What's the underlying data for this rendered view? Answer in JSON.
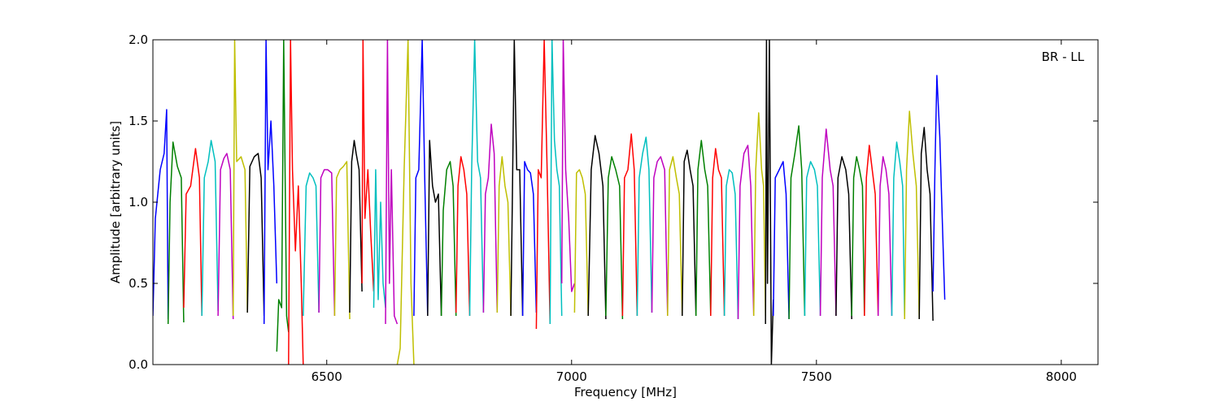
{
  "chart_data": {
    "type": "line",
    "annotation": "BR - LL",
    "xlabel": "Frequency [MHz]",
    "ylabel": "Amplitude [arbitrary units]",
    "xlim": [
      6145,
      8075
    ],
    "ylim": [
      0.0,
      2.0
    ],
    "x_ticks": [
      6500,
      7000,
      7500,
      8000
    ],
    "x_tick_labels": [
      "6500",
      "7000",
      "7500",
      "8000"
    ],
    "y_ticks": [
      0.0,
      0.5,
      1.0,
      1.5,
      2.0
    ],
    "y_tick_labels": [
      "0.0",
      "0.5",
      "1.0",
      "1.5",
      "2.0"
    ],
    "grid": false,
    "channel_width_mhz": 50,
    "background_series_color": "#c0c0c0",
    "series_colors": [
      "#0000ff",
      "#008000",
      "#ff0000",
      "#00bfbf",
      "#bf00bf",
      "#bfbf00",
      "#000000"
    ],
    "series": [
      {
        "color": "#0000ff",
        "x": [
          6145,
          6150,
          6160,
          6168,
          6173,
          6176
        ],
        "y": [
          0.3,
          0.9,
          1.2,
          1.3,
          1.57,
          0.28
        ]
      },
      {
        "color": "#008000",
        "x": [
          6176,
          6180,
          6186,
          6195,
          6203,
          6208
        ],
        "y": [
          0.25,
          1.0,
          1.37,
          1.22,
          1.15,
          0.26
        ]
      },
      {
        "color": "#ff0000",
        "x": [
          6208,
          6213,
          6222,
          6232,
          6240,
          6245
        ],
        "y": [
          0.35,
          1.05,
          1.1,
          1.33,
          1.15,
          0.3
        ]
      },
      {
        "color": "#00bfbf",
        "x": [
          6245,
          6250,
          6258,
          6264,
          6272,
          6278
        ],
        "y": [
          0.3,
          1.15,
          1.25,
          1.38,
          1.25,
          0.33
        ]
      },
      {
        "color": "#bf00bf",
        "x": [
          6278,
          6283,
          6290,
          6296,
          6303,
          6309
        ],
        "y": [
          0.3,
          1.2,
          1.27,
          1.3,
          1.2,
          0.28
        ]
      },
      {
        "color": "#bfbf00",
        "x": [
          6309,
          6312,
          6316,
          6325,
          6333,
          6338
        ],
        "y": [
          0.3,
          2.0,
          1.25,
          1.28,
          1.2,
          0.32
        ]
      },
      {
        "color": "#000000",
        "x": [
          6338,
          6343,
          6352,
          6360,
          6366,
          6372
        ],
        "y": [
          0.32,
          1.22,
          1.28,
          1.3,
          1.15,
          0.3
        ]
      },
      {
        "color": "#0000ff",
        "x": [
          6372,
          6376,
          6380,
          6386,
          6392,
          6398
        ],
        "y": [
          0.25,
          2.0,
          1.2,
          1.5,
          1.1,
          0.5
        ]
      },
      {
        "color": "#008000",
        "x": [
          6398,
          6402,
          6408,
          6412,
          6418,
          6422
        ],
        "y": [
          0.08,
          0.4,
          0.35,
          2.0,
          0.3,
          0.2
        ]
      },
      {
        "color": "#ff0000",
        "x": [
          6422,
          6426,
          6430,
          6436,
          6442,
          6448,
          6452
        ],
        "y": [
          0.0,
          2.0,
          1.2,
          0.7,
          1.1,
          0.5,
          0.0
        ]
      },
      {
        "color": "#00bfbf",
        "x": [
          6452,
          6458,
          6465,
          6472,
          6478,
          6484
        ],
        "y": [
          0.3,
          1.1,
          1.18,
          1.15,
          1.1,
          0.32
        ]
      },
      {
        "color": "#bf00bf",
        "x": [
          6484,
          6488,
          6495,
          6502,
          6510,
          6516
        ],
        "y": [
          0.32,
          1.15,
          1.2,
          1.2,
          1.18,
          0.3
        ]
      },
      {
        "color": "#bfbf00",
        "x": [
          6516,
          6520,
          6527,
          6534,
          6541,
          6547
        ],
        "y": [
          0.3,
          1.15,
          1.2,
          1.22,
          1.25,
          0.28
        ]
      },
      {
        "color": "#000000",
        "x": [
          6547,
          6551,
          6556,
          6560,
          6566,
          6572
        ],
        "y": [
          0.32,
          1.25,
          1.38,
          1.3,
          1.2,
          0.45
        ]
      },
      {
        "color": "#ff0000",
        "x": [
          6572,
          6574,
          6578,
          6584,
          6590,
          6596
        ],
        "y": [
          0.5,
          2.0,
          0.9,
          1.2,
          0.8,
          0.45
        ]
      },
      {
        "color": "#00bfbf",
        "x": [
          6596,
          6600,
          6605,
          6610,
          6615,
          6620
        ],
        "y": [
          0.35,
          1.2,
          0.4,
          1.0,
          0.5,
          0.35
        ]
      },
      {
        "color": "#bf00bf",
        "x": [
          6620,
          6624,
          6628,
          6632,
          6638,
          6644
        ],
        "y": [
          0.25,
          2.0,
          0.5,
          1.2,
          0.3,
          0.25
        ]
      },
      {
        "color": "#bfbf00",
        "x": [
          6644,
          6650,
          6658,
          6666,
          6672,
          6678
        ],
        "y": [
          0.0,
          0.1,
          1.2,
          2.0,
          0.5,
          0.0
        ]
      },
      {
        "color": "#0000ff",
        "x": [
          6678,
          6682,
          6688,
          6695,
          6700,
          6706
        ],
        "y": [
          0.3,
          1.15,
          1.2,
          2.0,
          1.15,
          0.3
        ]
      },
      {
        "color": "#000000",
        "x": [
          6706,
          6710,
          6716,
          6722,
          6728,
          6734
        ],
        "y": [
          0.3,
          1.38,
          1.1,
          1.0,
          1.05,
          0.3
        ]
      },
      {
        "color": "#008000",
        "x": [
          6734,
          6738,
          6745,
          6752,
          6758,
          6764
        ],
        "y": [
          0.3,
          0.95,
          1.2,
          1.25,
          1.1,
          0.3
        ]
      },
      {
        "color": "#ff0000",
        "x": [
          6764,
          6768,
          6774,
          6780,
          6786,
          6792
        ],
        "y": [
          0.32,
          1.1,
          1.28,
          1.2,
          1.05,
          0.3
        ]
      },
      {
        "color": "#00bfbf",
        "x": [
          6792,
          6796,
          6802,
          6808,
          6814,
          6820
        ],
        "y": [
          0.3,
          1.2,
          2.0,
          1.25,
          1.15,
          0.32
        ]
      },
      {
        "color": "#bf00bf",
        "x": [
          6820,
          6824,
          6830,
          6836,
          6842,
          6848
        ],
        "y": [
          0.32,
          1.05,
          1.15,
          1.48,
          1.3,
          0.32
        ]
      },
      {
        "color": "#bfbf00",
        "x": [
          6848,
          6852,
          6858,
          6864,
          6870,
          6876
        ],
        "y": [
          0.32,
          1.1,
          1.28,
          1.1,
          1.0,
          0.3
        ]
      },
      {
        "color": "#000000",
        "x": [
          6876,
          6879,
          6883,
          6888,
          6894,
          6900
        ],
        "y": [
          0.3,
          1.0,
          2.0,
          1.2,
          1.2,
          0.3
        ]
      },
      {
        "color": "#0000ff",
        "x": [
          6900,
          6904,
          6910,
          6916,
          6922,
          6928
        ],
        "y": [
          0.3,
          1.25,
          1.2,
          1.18,
          1.05,
          0.32
        ]
      },
      {
        "color": "#ff0000",
        "x": [
          6928,
          6932,
          6938,
          6944,
          6950,
          6956
        ],
        "y": [
          0.22,
          1.2,
          1.15,
          2.0,
          1.2,
          0.25
        ]
      },
      {
        "color": "#00bfbf",
        "x": [
          6956,
          6960,
          6965,
          6970,
          6975,
          6980
        ],
        "y": [
          0.25,
          2.0,
          1.38,
          1.2,
          1.1,
          0.3
        ]
      },
      {
        "color": "#bf00bf",
        "x": [
          6980,
          6983,
          6988,
          6994,
          7000,
          7006
        ],
        "y": [
          0.5,
          2.0,
          1.2,
          0.9,
          0.45,
          0.5
        ]
      },
      {
        "color": "#bfbf00",
        "x": [
          7006,
          7010,
          7016,
          7022,
          7028,
          7034
        ],
        "y": [
          0.32,
          1.18,
          1.2,
          1.15,
          1.05,
          0.3
        ]
      },
      {
        "color": "#000000",
        "x": [
          7034,
          7040,
          7048,
          7056,
          7064,
          7070
        ],
        "y": [
          0.3,
          1.2,
          1.41,
          1.3,
          1.1,
          0.28
        ]
      },
      {
        "color": "#008000",
        "x": [
          7070,
          7075,
          7082,
          7090,
          7098,
          7104
        ],
        "y": [
          0.3,
          1.15,
          1.28,
          1.2,
          1.1,
          0.28
        ]
      },
      {
        "color": "#ff0000",
        "x": [
          7104,
          7108,
          7115,
          7122,
          7128,
          7134
        ],
        "y": [
          0.3,
          1.15,
          1.2,
          1.42,
          1.2,
          0.3
        ]
      },
      {
        "color": "#00bfbf",
        "x": [
          7134,
          7138,
          7145,
          7152,
          7158,
          7164
        ],
        "y": [
          0.3,
          1.15,
          1.3,
          1.4,
          1.2,
          0.32
        ]
      },
      {
        "color": "#bf00bf",
        "x": [
          7164,
          7168,
          7175,
          7182,
          7190,
          7196
        ],
        "y": [
          0.32,
          1.15,
          1.25,
          1.28,
          1.2,
          0.3
        ]
      },
      {
        "color": "#bfbf00",
        "x": [
          7196,
          7200,
          7207,
          7214,
          7220,
          7226
        ],
        "y": [
          0.3,
          1.2,
          1.28,
          1.15,
          1.05,
          0.3
        ]
      },
      {
        "color": "#000000",
        "x": [
          7226,
          7230,
          7236,
          7242,
          7248,
          7254
        ],
        "y": [
          0.3,
          1.25,
          1.32,
          1.2,
          1.1,
          0.3
        ]
      },
      {
        "color": "#008000",
        "x": [
          7254,
          7258,
          7265,
          7272,
          7278,
          7284
        ],
        "y": [
          0.3,
          1.2,
          1.38,
          1.2,
          1.1,
          0.3
        ]
      },
      {
        "color": "#ff0000",
        "x": [
          7284,
          7288,
          7294,
          7300,
          7306,
          7312
        ],
        "y": [
          0.3,
          1.15,
          1.33,
          1.2,
          1.15,
          0.3
        ]
      },
      {
        "color": "#00bfbf",
        "x": [
          7312,
          7316,
          7322,
          7328,
          7334,
          7340
        ],
        "y": [
          0.3,
          1.1,
          1.2,
          1.18,
          1.05,
          0.28
        ]
      },
      {
        "color": "#bf00bf",
        "x": [
          7340,
          7344,
          7352,
          7360,
          7366,
          7372
        ],
        "y": [
          0.28,
          1.1,
          1.3,
          1.35,
          1.1,
          0.3
        ]
      },
      {
        "color": "#bfbf00",
        "x": [
          7372,
          7376,
          7382,
          7388,
          7392,
          7396
        ],
        "y": [
          0.3,
          1.2,
          1.55,
          1.2,
          1.1,
          0.3
        ]
      },
      {
        "color": "#000000",
        "x": [
          7396,
          7398,
          7400,
          7404,
          7408,
          7412
        ],
        "y": [
          0.25,
          2.0,
          0.5,
          2.0,
          0.0,
          0.4
        ]
      },
      {
        "color": "#0000ff",
        "x": [
          7412,
          7416,
          7424,
          7432,
          7438,
          7444
        ],
        "y": [
          0.3,
          1.15,
          1.2,
          1.25,
          1.05,
          0.28
        ]
      },
      {
        "color": "#008000",
        "x": [
          7444,
          7448,
          7456,
          7464,
          7470,
          7476
        ],
        "y": [
          0.28,
          1.15,
          1.3,
          1.47,
          1.2,
          0.3
        ]
      },
      {
        "color": "#00bfbf",
        "x": [
          7476,
          7480,
          7488,
          7496,
          7502,
          7508
        ],
        "y": [
          0.3,
          1.15,
          1.25,
          1.2,
          1.1,
          0.3
        ]
      },
      {
        "color": "#bf00bf",
        "x": [
          7508,
          7512,
          7520,
          7528,
          7534,
          7540
        ],
        "y": [
          0.3,
          1.15,
          1.45,
          1.2,
          1.1,
          0.3
        ]
      },
      {
        "color": "#000000",
        "x": [
          7540,
          7544,
          7552,
          7560,
          7566,
          7572
        ],
        "y": [
          0.3,
          1.15,
          1.28,
          1.2,
          1.05,
          0.28
        ]
      },
      {
        "color": "#008000",
        "x": [
          7572,
          7576,
          7582,
          7588,
          7594,
          7598
        ],
        "y": [
          0.3,
          1.15,
          1.28,
          1.2,
          1.1,
          0.3
        ]
      },
      {
        "color": "#ff0000",
        "x": [
          7598,
          7602,
          7608,
          7614,
          7620,
          7626
        ],
        "y": [
          0.3,
          1.15,
          1.35,
          1.2,
          1.05,
          0.3
        ]
      },
      {
        "color": "#bf00bf",
        "x": [
          7626,
          7630,
          7636,
          7642,
          7648,
          7654
        ],
        "y": [
          0.3,
          1.1,
          1.28,
          1.2,
          1.05,
          0.3
        ]
      },
      {
        "color": "#00bfbf",
        "x": [
          7654,
          7658,
          7664,
          7670,
          7676,
          7680
        ],
        "y": [
          0.3,
          1.15,
          1.37,
          1.25,
          1.1,
          0.3
        ]
      },
      {
        "color": "#bfbf00",
        "x": [
          7680,
          7684,
          7690,
          7697,
          7704,
          7710
        ],
        "y": [
          0.28,
          1.2,
          1.56,
          1.3,
          1.1,
          0.28
        ]
      },
      {
        "color": "#000000",
        "x": [
          7710,
          7714,
          7720,
          7726,
          7732,
          7738
        ],
        "y": [
          0.28,
          1.3,
          1.46,
          1.2,
          1.05,
          0.27
        ]
      },
      {
        "color": "#0000ff",
        "x": [
          7738,
          7742,
          7746,
          7752,
          7758,
          7762
        ],
        "y": [
          0.45,
          1.2,
          1.78,
          1.4,
          0.8,
          0.4
        ]
      }
    ]
  }
}
